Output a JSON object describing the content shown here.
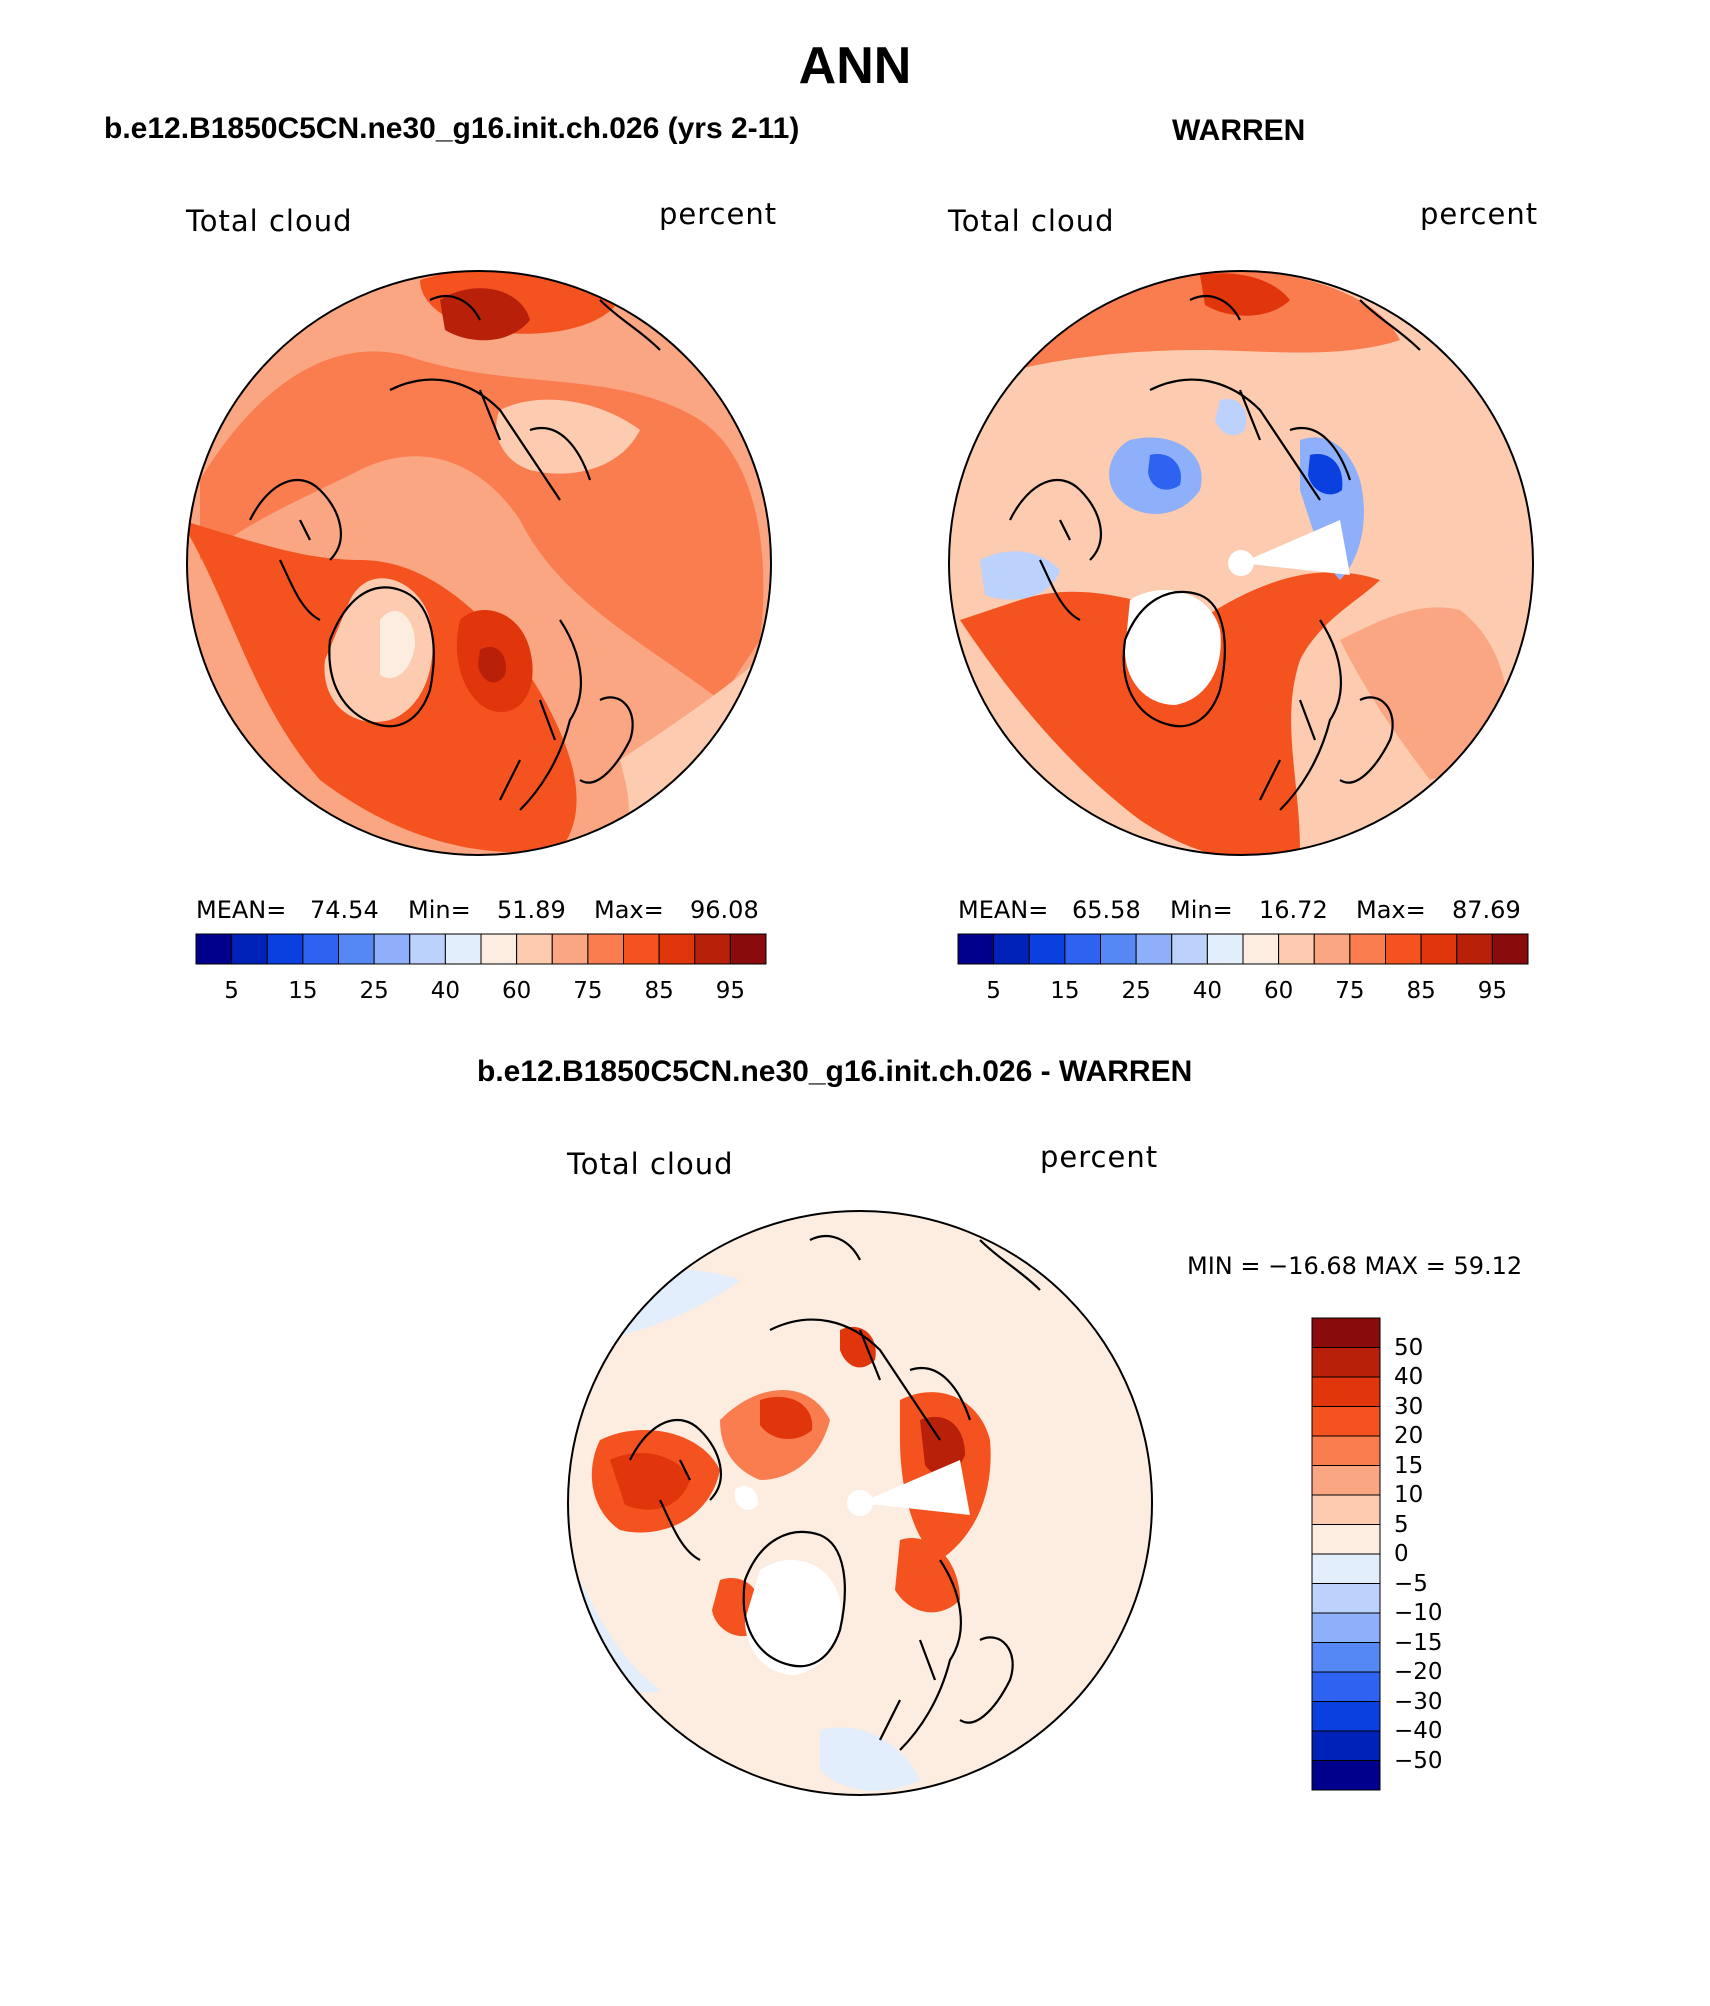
{
  "page_title": "ANN",
  "colors": {
    "palette": [
      "#00008c",
      "#0022b8",
      "#0a3fe0",
      "#2d63f0",
      "#5587f5",
      "#8eb0fa",
      "#bcd2fc",
      "#e3eefd",
      "#fdece0",
      "#fccbb0",
      "#fba682",
      "#fa7d50",
      "#f4531f",
      "#e1350c",
      "#b8200a",
      "#8a0b0b"
    ],
    "diff_palette": [
      "#00008c",
      "#0022b8",
      "#0a3fe0",
      "#2d63f0",
      "#5587f5",
      "#8eb0fa",
      "#bcd2fc",
      "#e3eefd",
      "#fdece0",
      "#fccbb0",
      "#fba682",
      "#fa7d50",
      "#f4531f",
      "#e1350c",
      "#b8200a",
      "#8a0b0b"
    ],
    "coastline": "#000000",
    "missing": "#ffffff"
  },
  "panels": {
    "model": {
      "heading": "b.e12.B1850C5CN.ne30_g16.init.ch.026 (yrs 2-11)",
      "variable": "Total cloud",
      "units": "percent",
      "stats": {
        "mean_label": "MEAN=",
        "mean": "74.54",
        "min_label": "Min=",
        "min": "51.89",
        "max_label": "Max=",
        "max": "96.08"
      },
      "colorbar_ticks": [
        "5",
        "15",
        "25",
        "40",
        "60",
        "75",
        "85",
        "95"
      ]
    },
    "obs": {
      "heading": "WARREN",
      "variable": "Total cloud",
      "units": "percent",
      "stats": {
        "mean_label": "MEAN=",
        "mean": "65.58",
        "min_label": "Min=",
        "min": "16.72",
        "max_label": "Max=",
        "max": "87.69"
      },
      "colorbar_ticks": [
        "5",
        "15",
        "25",
        "40",
        "60",
        "75",
        "85",
        "95"
      ]
    },
    "diff": {
      "heading": "b.e12.B1850C5CN.ne30_g16.init.ch.026 - WARREN",
      "variable": "Total cloud",
      "units": "percent",
      "minmax": "MIN = −16.68 MAX =   59.12",
      "colorbar_ticks": [
        "50",
        "40",
        "30",
        "20",
        "15",
        "10",
        "5",
        "0",
        "−5",
        "−10",
        "−15",
        "−20",
        "−30",
        "−40",
        "−50"
      ]
    }
  }
}
